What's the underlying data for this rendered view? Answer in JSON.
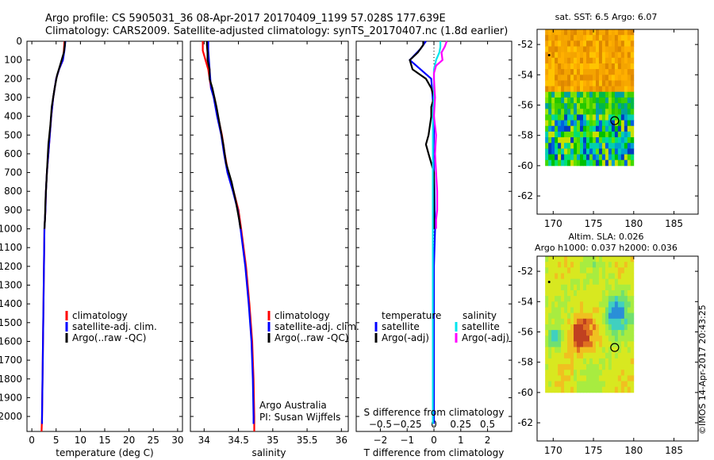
{
  "header": {
    "line1": "Argo profile: CS 5905031_36 08-Apr-2017 20170409_1199 57.028S 177.639E",
    "line2": "Climatology: CARS2009. Satellite-adjusted climatology: synTS_20170407.nc (1.8d earlier)"
  },
  "colors": {
    "climatology": "#ff0000",
    "satellite": "#0000ff",
    "argo": "#000000",
    "sat_salinity": "#00e5ee",
    "argo_salinity": "#ff00ff"
  },
  "chart_data": [
    {
      "id": "temperature",
      "type": "line",
      "xlabel": "temperature (deg C)",
      "xlim": [
        -1,
        31
      ],
      "xticks": [
        0,
        5,
        10,
        15,
        20,
        25,
        30
      ],
      "xticklabels": [
        "0",
        "5",
        "10",
        "15",
        "20",
        "25",
        "30"
      ],
      "ylim": [
        2080,
        0
      ],
      "yticks": [
        0,
        100,
        200,
        300,
        400,
        500,
        600,
        700,
        800,
        900,
        1000,
        1100,
        1200,
        1300,
        1400,
        1500,
        1600,
        1700,
        1800,
        1900,
        2000
      ],
      "legend": [
        "climatology",
        "satellite-adj. clim.",
        "Argo(..raw -QC)"
      ],
      "series": [
        {
          "name": "climatology",
          "color": "#ff0000",
          "depth": [
            0,
            50,
            100,
            150,
            200,
            300,
            400,
            500,
            600,
            700,
            800,
            900,
            1000,
            1200,
            1400,
            1600,
            1800,
            2000,
            2080
          ],
          "values": [
            6.7,
            6.6,
            6.4,
            5.6,
            5.0,
            4.4,
            4.0,
            3.7,
            3.4,
            3.1,
            2.9,
            2.8,
            2.6,
            2.5,
            2.4,
            2.3,
            2.2,
            2.1,
            2.0
          ]
        },
        {
          "name": "satellite-adj. clim.",
          "color": "#0000ff",
          "depth": [
            0,
            50,
            100,
            150,
            200,
            300,
            400,
            500,
            600,
            700,
            800,
            900,
            1000,
            1200,
            1400,
            1600,
            1800,
            2000,
            2040
          ],
          "values": [
            6.9,
            6.7,
            6.4,
            5.6,
            5.0,
            4.4,
            4.0,
            3.7,
            3.4,
            3.1,
            2.9,
            2.8,
            2.6,
            2.5,
            2.4,
            2.3,
            2.2,
            2.1,
            2.1
          ]
        },
        {
          "name": "Argo(..raw -QC)",
          "color": "#000000",
          "depth": [
            0,
            20,
            60,
            120,
            180,
            250,
            350,
            450,
            550,
            650,
            750,
            850,
            950,
            1000
          ],
          "values": [
            6.8,
            6.8,
            6.6,
            5.9,
            5.2,
            4.7,
            4.1,
            3.8,
            3.4,
            3.2,
            3.0,
            2.8,
            2.7,
            2.6
          ]
        }
      ]
    },
    {
      "id": "salinity",
      "type": "line",
      "xlabel": "salinity",
      "xlim": [
        33.8,
        36.1
      ],
      "xticks": [
        34,
        34.5,
        35,
        35.5,
        36
      ],
      "xticklabels": [
        "34",
        "34.5",
        "35",
        "35.5",
        "36"
      ],
      "ylim": [
        2080,
        0
      ],
      "legend": [
        "climatology",
        "satellite-adj. clim.",
        "Argo(..raw -QC)"
      ],
      "annotations": [
        "Argo Australia",
        "PI: Susan Wijffels"
      ],
      "series": [
        {
          "name": "climatology",
          "color": "#ff0000",
          "depth": [
            0,
            50,
            100,
            150,
            200,
            250,
            300,
            400,
            500,
            600,
            700,
            800,
            900,
            1000,
            1200,
            1400,
            1600,
            1800,
            2000,
            2080
          ],
          "values": [
            33.98,
            33.98,
            34.02,
            34.06,
            34.08,
            34.1,
            34.15,
            34.2,
            34.26,
            34.3,
            34.35,
            34.43,
            34.5,
            34.54,
            34.61,
            34.66,
            34.7,
            34.72,
            34.73,
            34.73
          ]
        },
        {
          "name": "satellite-adj. clim.",
          "color": "#0000ff",
          "depth": [
            0,
            50,
            100,
            150,
            200,
            250,
            300,
            400,
            500,
            600,
            700,
            800,
            900,
            1000,
            1200,
            1400,
            1600,
            1800,
            2000,
            2040
          ],
          "values": [
            34.06,
            34.06,
            34.07,
            34.08,
            34.09,
            34.1,
            34.14,
            34.19,
            34.25,
            34.29,
            34.34,
            34.42,
            34.49,
            34.53,
            34.6,
            34.65,
            34.69,
            34.71,
            34.72,
            34.72
          ]
        },
        {
          "name": "Argo(..raw -QC)",
          "color": "#000000",
          "depth": [
            0,
            20,
            60,
            100,
            150,
            200,
            250,
            350,
            450,
            550,
            650,
            750,
            850,
            950,
            1000
          ],
          "values": [
            34.04,
            34.04,
            34.05,
            34.05,
            34.08,
            34.08,
            34.12,
            34.18,
            34.23,
            34.28,
            34.32,
            34.4,
            34.46,
            34.51,
            34.53
          ]
        }
      ]
    },
    {
      "id": "differences",
      "type": "line",
      "xlabel": "T difference from climatology",
      "xlabel_top": "S difference from climatology",
      "xlim": [
        -2.9,
        2.9
      ],
      "xticks": [
        -2,
        -1,
        0,
        1,
        2
      ],
      "xticklabels": [
        "−2",
        "−1",
        "0",
        "1",
        "2"
      ],
      "sxticklabels": [
        "−0.5",
        "−0.25",
        "0",
        "0.25",
        "0.5"
      ],
      "ylim": [
        2080,
        0
      ],
      "legend_temperature": {
        "title": "temperature",
        "items": [
          "satellite",
          "Argo(-adj)"
        ]
      },
      "legend_salinity": {
        "title": "salinity",
        "items": [
          "satellite",
          "Argo(-adj)"
        ]
      },
      "series": [
        {
          "name": "temperature satellite",
          "color": "#0000ff",
          "depth": [
            0,
            40,
            100,
            200,
            300,
            400,
            500,
            600,
            700,
            800,
            900,
            1000,
            1100,
            1200,
            1400,
            1600,
            1800,
            2000,
            2040
          ],
          "values": [
            -0.3,
            -0.5,
            -0.9,
            -0.1,
            -0.05,
            0.0,
            0.0,
            -0.02,
            0.0,
            0.02,
            0.03,
            0.04,
            0.02,
            0.0,
            0.0,
            0.0,
            0.0,
            0.0,
            0.0
          ]
        },
        {
          "name": "temperature Argo(-adj)",
          "color": "#000000",
          "depth": [
            0,
            20,
            60,
            100,
            150,
            200,
            250,
            300,
            350,
            400,
            500,
            550,
            600,
            700,
            800,
            900,
            1000
          ],
          "values": [
            -0.4,
            -0.4,
            -0.6,
            -0.9,
            -0.8,
            -0.3,
            -0.1,
            0.0,
            -0.1,
            -0.1,
            -0.2,
            -0.3,
            -0.2,
            0.0,
            0.0,
            0.0,
            0.0
          ]
        },
        {
          "name": "salinity satellite",
          "color": "#00e5ee",
          "depth": [
            0,
            30,
            60,
            100,
            150,
            200,
            300,
            400,
            500,
            600,
            700,
            800,
            900,
            1000,
            1200,
            1400,
            1600,
            1800,
            2000,
            2040
          ],
          "values": [
            0.06,
            0.06,
            0.05,
            0.02,
            0.0,
            0.0,
            0.0,
            -0.01,
            -0.01,
            -0.01,
            -0.01,
            -0.01,
            -0.01,
            -0.01,
            -0.01,
            -0.01,
            -0.01,
            -0.01,
            -0.01,
            -0.01
          ]
        },
        {
          "name": "salinity Argo(-adj)",
          "color": "#ff00ff",
          "depth": [
            0,
            30,
            60,
            100,
            130,
            170,
            200,
            300,
            400,
            500,
            600,
            700,
            800,
            900,
            950,
            1000
          ],
          "values": [
            0.12,
            0.1,
            0.07,
            0.08,
            0.02,
            0.0,
            0.0,
            0.01,
            0.0,
            0.02,
            0.01,
            0.02,
            0.03,
            0.03,
            0.02,
            0.02
          ]
        }
      ]
    },
    {
      "id": "sst_map",
      "type": "heatmap",
      "title": "sat. SST: 6.5 Argo: 6.07",
      "xlim": [
        168,
        188
      ],
      "ylim": [
        -63.2,
        -51
      ],
      "xticks": [
        170,
        175,
        180,
        185
      ],
      "yticks": [
        -52,
        -54,
        -56,
        -58,
        -60,
        -62
      ],
      "data_extent": {
        "lon": [
          169,
          180
        ],
        "lat": [
          -60,
          -51
        ]
      },
      "float": {
        "lon": 177.639,
        "lat": -57.028
      }
    },
    {
      "id": "sla_map",
      "type": "heatmap",
      "title_line1": "Altim. SLA: 0.026",
      "title_line2": "Argo h1000: 0.037 h2000: 0.036",
      "xlim": [
        168,
        188
      ],
      "ylim": [
        -63.2,
        -51
      ],
      "xticks": [
        170,
        175,
        180,
        185
      ],
      "yticks": [
        -52,
        -54,
        -56,
        -58,
        -60,
        -62
      ],
      "data_extent": {
        "lon": [
          169,
          180
        ],
        "lat": [
          -60,
          -51
        ]
      },
      "float": {
        "lon": 177.639,
        "lat": -57.028
      }
    }
  ],
  "credit": "©IMOS 14-Apr-2017 20:43:25"
}
